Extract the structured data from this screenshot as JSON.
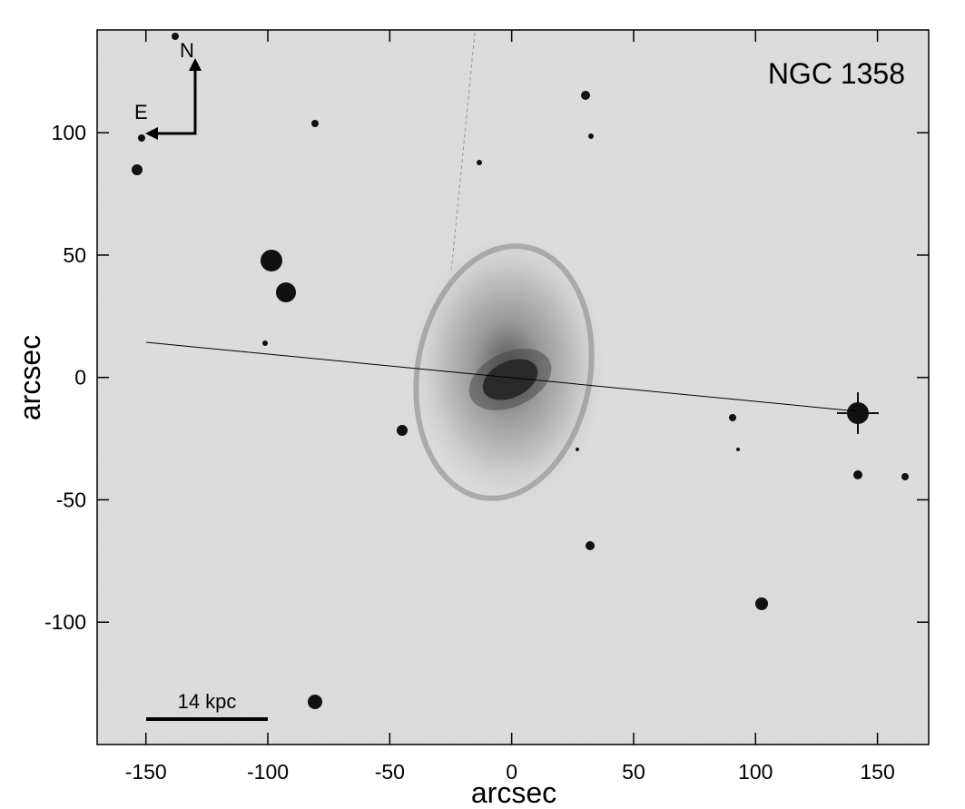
{
  "chart_data": {
    "type": "image",
    "title": "NGC 1358",
    "x_label": "arcsec",
    "y_label": "arcsec",
    "xlim": [
      -170,
      171
    ],
    "ylim": [
      -150,
      142
    ],
    "xticks": [
      -150,
      -100,
      -50,
      0,
      50,
      100,
      150
    ],
    "yticks": [
      -100,
      -50,
      0,
      50,
      100
    ],
    "annotations": {
      "north": "N",
      "east": "E",
      "scale_bar": "14 kpc"
    }
  }
}
